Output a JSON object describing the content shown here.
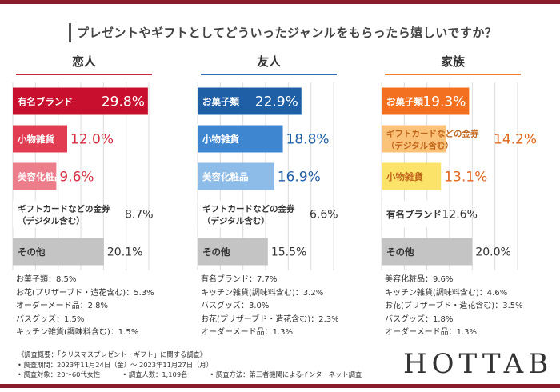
{
  "title": "プレゼントやギフトとしてどういったジャンルをもらったら嬉しいですか？",
  "chart_data": [
    {
      "type": "bar",
      "orientation": "horizontal",
      "title": "恋人",
      "accent": "#c82a3a",
      "xlim": [
        0,
        30
      ],
      "bars": [
        {
          "label": "有名ブランド",
          "value": 29.8,
          "display": "29.8%",
          "color": "#c8102e"
        },
        {
          "label": "小物雑貨",
          "value": 12.0,
          "display": "12.0%",
          "color": "#e23c52"
        },
        {
          "label": "美容化粧品",
          "value": 9.6,
          "display": "9.6%",
          "color": "#ee7d8b"
        },
        {
          "label": "ギフトカードなどの金券\n（デジタル含む）",
          "value": 8.7,
          "display": "8.7%",
          "color": "#ffffff"
        },
        {
          "label": "その他",
          "value": 20.1,
          "display": "20.1%",
          "color": "#c4c4c4"
        }
      ],
      "others": [
        "お菓子類：8.5%",
        "お花(プリザーブド・造花含む)：5.3%",
        "オーダーメード品：2.8%",
        "バスグッズ：1.5%",
        "キッチン雑貨(調味料含む)：1.5%"
      ]
    },
    {
      "type": "bar",
      "orientation": "horizontal",
      "title": "友人",
      "accent": "#2d6db4",
      "xlim": [
        0,
        30
      ],
      "bars": [
        {
          "label": "お菓子類",
          "value": 22.9,
          "display": "22.9%",
          "color": "#1e5fa6"
        },
        {
          "label": "小物雑貨",
          "value": 18.8,
          "display": "18.8%",
          "color": "#3f86d0"
        },
        {
          "label": "美容化粧品",
          "value": 16.9,
          "display": "16.9%",
          "color": "#8ebce8"
        },
        {
          "label": "ギフトカードなどの金券\n（デジタル含む）",
          "value": 6.6,
          "display": "6.6%",
          "color": "#ffffff"
        },
        {
          "label": "その他",
          "value": 15.5,
          "display": "15.5%",
          "color": "#c4c4c4"
        }
      ],
      "others": [
        "有名ブランド：7.7%",
        "キッチン雑貨(調味料含む)：3.2%",
        "バスグッズ：3.0%",
        "お花(プリザーブド・造花含む)：2.3%",
        "オーダーメード品：1.3%"
      ]
    },
    {
      "type": "bar",
      "orientation": "horizontal",
      "title": "家族",
      "accent": "#ef7d2a",
      "xlim": [
        0,
        30
      ],
      "bars": [
        {
          "label": "お菓子類",
          "value": 19.3,
          "display": "19.3%",
          "color": "#f37021"
        },
        {
          "label": "ギフトカードなどの金券\n（デジタル含む）",
          "value": 14.2,
          "display": "14.2%",
          "color": "#fbc27a"
        },
        {
          "label": "小物雑貨",
          "value": 13.1,
          "display": "13.1%",
          "color": "#fbe36a"
        },
        {
          "label": "有名ブランド",
          "value": 12.6,
          "display": "12.6%",
          "color": "#ffffff"
        },
        {
          "label": "その他",
          "value": 20.0,
          "display": "20.0%",
          "color": "#c4c4c4"
        }
      ],
      "others": [
        "美容化粧品：9.6%",
        "キッチン雑貨(調味料含む)：4.6%",
        "お花(プリザーブド・造花含む)：3.5%",
        "バスグッズ：1.8%",
        "オーダーメード品：1.3%"
      ]
    }
  ],
  "footer": {
    "line1": "《調査概要：「クリスマスプレゼント・ギフト」に関する調査》",
    "line2": "• 調査期間：2023年11月24日（金）～ 2023年11月27日（月）",
    "line3a": "• 調査対象：20～60代女性",
    "line3b": "• 調査人数：1,109名",
    "line3c": "• 調査方法：第三者機関によるインターネット調査"
  },
  "logo": "HOTTAB"
}
